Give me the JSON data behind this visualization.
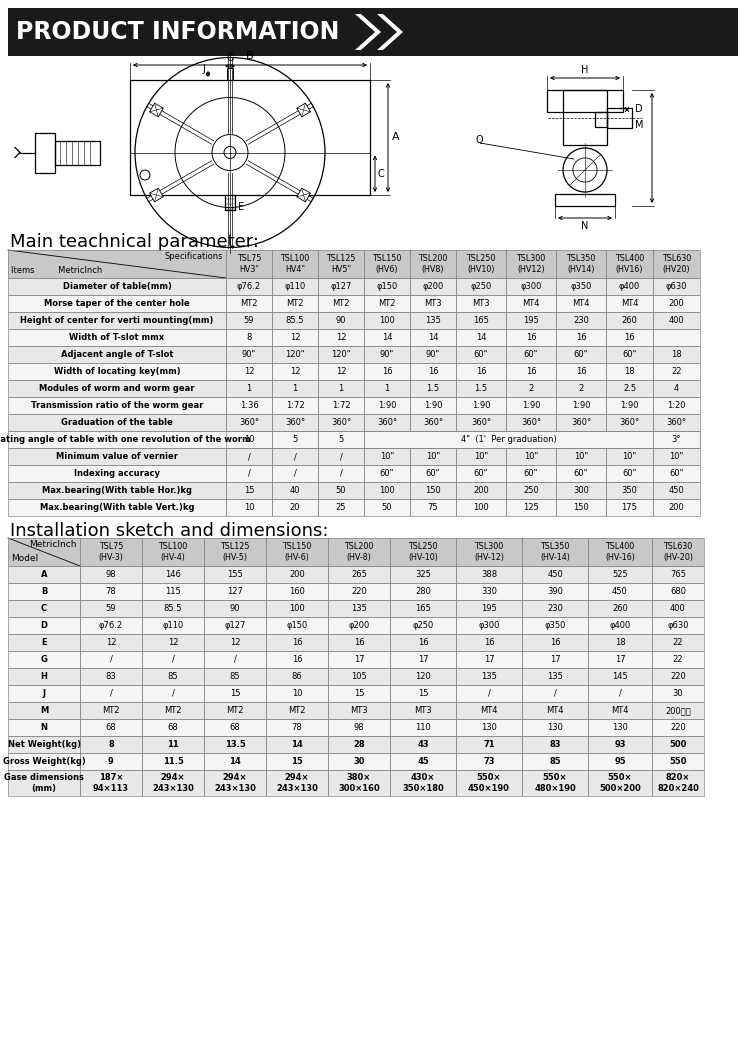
{
  "title": "PRODUCT INFORMATION",
  "section1_title": "Main teachnical parameter:",
  "section2_title": "Installation sketch and dimensions:",
  "row_bg_even": "#e8e8e8",
  "row_bg_odd": "#f5f5f5",
  "header_bg": "#c8c8c8",
  "title_bg": "#1a1a1a",
  "title_fg": "#ffffff",
  "border_color": "#888888",
  "table1_rows": [
    [
      "Diameter of table(mm)",
      "φ76.2",
      "φ110",
      "φ127",
      "φ150",
      "φ200",
      "φ250",
      "φ300",
      "φ350",
      "φ400",
      "φ630"
    ],
    [
      "Morse taper of the center hole",
      "MT2",
      "MT2",
      "MT2",
      "MT2",
      "MT3",
      "MT3",
      "MT4",
      "MT4",
      "MT4",
      "200"
    ],
    [
      "Height of center for verti mounting(mm)",
      "59",
      "85.5",
      "90",
      "100",
      "135",
      "165",
      "195",
      "230",
      "260",
      "400"
    ],
    [
      "Width of T-slot mmx",
      "8",
      "12",
      "12",
      "14",
      "14",
      "14",
      "16",
      "16",
      "16",
      ""
    ],
    [
      "Adjacent angle of T-slot",
      "90\"",
      "120\"",
      "120\"",
      "90\"",
      "90\"",
      "60\"",
      "60\"",
      "60\"",
      "60\"",
      "18"
    ],
    [
      "Width of locating key(mm)",
      "12",
      "12",
      "12",
      "16",
      "16",
      "16",
      "16",
      "16",
      "18",
      "22"
    ],
    [
      "Modules of worm and worm gear",
      "1",
      "1",
      "1",
      "1",
      "1.5",
      "1.5",
      "2",
      "2",
      "2.5",
      "4"
    ],
    [
      "Transmission ratio of the worm gear",
      "1:36",
      "1:72",
      "1:72",
      "1:90",
      "1:90",
      "1:90",
      "1:90",
      "1:90",
      "1:90",
      "1:20"
    ],
    [
      "Graduation of the table",
      "360°",
      "360°",
      "360°",
      "360°",
      "360°",
      "360°",
      "360°",
      "360°",
      "360°",
      "360°"
    ],
    [
      "Rotating angle of table with one revolution of the worm",
      "10",
      "5",
      "5",
      "4\"  (1'  Per graduation)",
      "3°"
    ],
    [
      "Minimum value of vernier",
      "/",
      "/",
      "/",
      "10\"",
      "10\"",
      "10\"",
      "10\"",
      "10\"",
      "10\"",
      "10\""
    ],
    [
      "Indexing accuracy",
      "/",
      "/",
      "/",
      "60\"",
      "60\"",
      "60\"",
      "60\"",
      "60\"",
      "60\"",
      "60\""
    ],
    [
      "Max.bearing(With table Hor.)kg",
      "15",
      "40",
      "50",
      "100",
      "150",
      "200",
      "250",
      "300",
      "350",
      "450"
    ],
    [
      "Max.bearing(With table Vert.)kg",
      "10",
      "20",
      "25",
      "50",
      "75",
      "100",
      "125",
      "150",
      "175",
      "200"
    ]
  ],
  "table2_rows": [
    [
      "A",
      "98",
      "146",
      "155",
      "200",
      "265",
      "325",
      "388",
      "450",
      "525",
      "765"
    ],
    [
      "B",
      "78",
      "115",
      "127",
      "160",
      "220",
      "280",
      "330",
      "390",
      "450",
      "680"
    ],
    [
      "C",
      "59",
      "85.5",
      "90",
      "100",
      "135",
      "165",
      "195",
      "230",
      "260",
      "400"
    ],
    [
      "D",
      "φ76.2",
      "φ110",
      "φ127",
      "φ150",
      "φ200",
      "φ250",
      "φ300",
      "φ350",
      "φ400",
      "φ630"
    ],
    [
      "E",
      "12",
      "12",
      "12",
      "16",
      "16",
      "16",
      "16",
      "16",
      "18",
      "22"
    ],
    [
      "G",
      "/",
      "/",
      "/",
      "16",
      "17",
      "17",
      "17",
      "17",
      "17",
      "22"
    ],
    [
      "H",
      "83",
      "85",
      "85",
      "86",
      "105",
      "120",
      "135",
      "135",
      "145",
      "220"
    ],
    [
      "J",
      "/",
      "/",
      "15",
      "10",
      "15",
      "15",
      "/",
      "/",
      "/",
      "30"
    ],
    [
      "M",
      "MT2",
      "MT2",
      "MT2",
      "MT2",
      "MT3",
      "MT3",
      "MT4",
      "MT4",
      "MT4",
      "200通孔"
    ],
    [
      "N",
      "68",
      "68",
      "68",
      "78",
      "98",
      "110",
      "130",
      "130",
      "130",
      "220"
    ],
    [
      "Net Weight(kg)",
      "8",
      "11",
      "13.5",
      "14",
      "28",
      "43",
      "71",
      "83",
      "93",
      "500"
    ],
    [
      "Gross Weight(kg)",
      "9",
      "11.5",
      "14",
      "15",
      "30",
      "45",
      "73",
      "85",
      "95",
      "550"
    ],
    [
      "Gase dimensions\n(mm)",
      "187×\n94×113",
      "294×\n243×130",
      "294×\n243×130",
      "294×\n243×130",
      "380×\n300×160",
      "430×\n350×180",
      "550×\n450×190",
      "550×\n480×190",
      "550×\n500×200",
      "820×\n820×240"
    ]
  ]
}
